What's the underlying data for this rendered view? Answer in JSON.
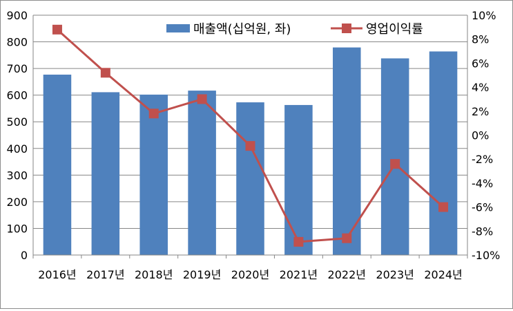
{
  "chart_data": {
    "type": "bar+line",
    "categories": [
      "2016년",
      "2017년",
      "2018년",
      "2019년",
      "2020년",
      "2021년",
      "2022년",
      "2023년",
      "2024년"
    ],
    "series": [
      {
        "name": "매출액(십억원, 좌)",
        "type": "bar",
        "axis": "left",
        "color": "#4F81BD",
        "values": [
          677,
          611,
          602,
          617,
          573,
          563,
          779,
          738,
          764
        ]
      },
      {
        "name": "영업이익률",
        "type": "line",
        "axis": "right",
        "color": "#C0504D",
        "values": [
          8.8,
          5.2,
          1.8,
          3.0,
          -0.9,
          -8.9,
          -8.6,
          -2.4,
          -6.0
        ]
      }
    ],
    "y_left": {
      "min": 0,
      "max": 900,
      "step": 100,
      "ticks": [
        "0",
        "100",
        "200",
        "300",
        "400",
        "500",
        "600",
        "700",
        "800",
        "900"
      ]
    },
    "y_right": {
      "min": -10,
      "max": 10,
      "step": 2,
      "ticks": [
        "-10%",
        "-8%",
        "-6%",
        "-4%",
        "-2%",
        "0%",
        "2%",
        "4%",
        "6%",
        "8%",
        "10%"
      ]
    },
    "grid": true,
    "legend": "top-right",
    "title": "",
    "xlabel": "",
    "ylabel": ""
  }
}
